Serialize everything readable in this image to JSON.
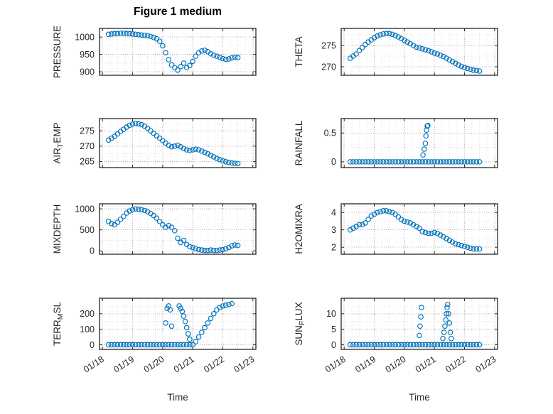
{
  "figure": {
    "title": "Figure 1 medium",
    "xlabel": "Time",
    "marker_color": "#0072BD",
    "axis_color": "#262626",
    "grid_color": "#b0b0b0",
    "minor_grid_color": "#e4e4e4",
    "background": "#ffffff"
  },
  "x_axis": {
    "ticks": [
      18,
      19,
      20,
      21,
      22,
      23
    ],
    "tick_labels": [
      "01/18",
      "01/19",
      "01/20",
      "01/21",
      "01/22",
      "01/23"
    ],
    "xlim": [
      17.9,
      23.1
    ]
  },
  "chart_data": [
    {
      "name": "pressure",
      "type": "scatter",
      "ylabel": "PRESSURE",
      "ylabel_parts": [
        {
          "text": "PRESSURE",
          "sub": false
        }
      ],
      "yticks": [
        900,
        950,
        1000
      ],
      "ylim": [
        890,
        1025
      ],
      "x": [
        18.2,
        18.3,
        18.4,
        18.5,
        18.6,
        18.7,
        18.8,
        18.9,
        19,
        19.1,
        19.2,
        19.3,
        19.4,
        19.5,
        19.6,
        19.7,
        19.8,
        19.9,
        20,
        20.1,
        20.2,
        20.3,
        20.4,
        20.5,
        20.6,
        20.7,
        20.8,
        20.9,
        21,
        21.1,
        21.2,
        21.3,
        21.4,
        21.5,
        21.6,
        21.7,
        21.8,
        21.9,
        22,
        22.1,
        22.2,
        22.3,
        22.4,
        22.5
      ],
      "y": [
        1008,
        1009,
        1010,
        1010,
        1011,
        1011,
        1010,
        1010,
        1009,
        1008,
        1007,
        1006,
        1005,
        1004,
        1002,
        999,
        995,
        988,
        975,
        955,
        935,
        920,
        912,
        905,
        915,
        925,
        912,
        918,
        930,
        945,
        955,
        960,
        962,
        958,
        952,
        948,
        945,
        942,
        938,
        936,
        937,
        940,
        942,
        941
      ]
    },
    {
      "name": "theta",
      "type": "scatter",
      "ylabel": "THETA",
      "ylabel_parts": [
        {
          "text": "THETA",
          "sub": false
        }
      ],
      "yticks": [
        270,
        275
      ],
      "ylim": [
        268,
        279
      ],
      "x": [
        18.2,
        18.3,
        18.4,
        18.5,
        18.6,
        18.7,
        18.8,
        18.9,
        19,
        19.1,
        19.2,
        19.3,
        19.4,
        19.5,
        19.6,
        19.7,
        19.8,
        19.9,
        20,
        20.1,
        20.2,
        20.3,
        20.4,
        20.5,
        20.6,
        20.7,
        20.8,
        20.9,
        21,
        21.1,
        21.2,
        21.3,
        21.4,
        21.5,
        21.6,
        21.7,
        21.8,
        21.9,
        22,
        22.1,
        22.2,
        22.3,
        22.4,
        22.5
      ],
      "y": [
        272,
        272.5,
        273,
        273.8,
        274.5,
        275.2,
        275.8,
        276.3,
        276.8,
        277.2,
        277.5,
        277.7,
        277.8,
        277.8,
        277.6,
        277.3,
        277,
        276.6,
        276.2,
        275.8,
        275.4,
        275,
        274.6,
        274.4,
        274.2,
        274,
        273.8,
        273.5,
        273.2,
        273,
        272.7,
        272.4,
        272,
        271.6,
        271.2,
        270.8,
        270.4,
        270.1,
        269.8,
        269.6,
        269.4,
        269.2,
        269.1,
        269
      ]
    },
    {
      "name": "air-temp",
      "type": "scatter",
      "ylabel": "AIR_TEMP",
      "ylabel_parts": [
        {
          "text": "AIR",
          "sub": false
        },
        {
          "text": "T",
          "sub": true
        },
        {
          "text": "EMP",
          "sub": false
        }
      ],
      "yticks": [
        265,
        270,
        275
      ],
      "ylim": [
        263,
        279
      ],
      "x": [
        18.2,
        18.3,
        18.4,
        18.5,
        18.6,
        18.7,
        18.8,
        18.9,
        19,
        19.1,
        19.2,
        19.3,
        19.4,
        19.5,
        19.6,
        19.7,
        19.8,
        19.9,
        20,
        20.1,
        20.2,
        20.3,
        20.4,
        20.5,
        20.6,
        20.7,
        20.8,
        20.9,
        21,
        21.1,
        21.2,
        21.3,
        21.4,
        21.5,
        21.6,
        21.7,
        21.8,
        21.9,
        22,
        22.1,
        22.2,
        22.3,
        22.4,
        22.5
      ],
      "y": [
        272,
        272.6,
        273.2,
        274,
        274.8,
        275.5,
        276.2,
        276.8,
        277.2,
        277.4,
        277.3,
        277,
        276.5,
        275.8,
        275,
        274.2,
        273.4,
        272.6,
        271.8,
        271,
        270.3,
        269.8,
        270,
        270.3,
        269.8,
        269.2,
        268.8,
        268.6,
        268.8,
        269,
        268.8,
        268.4,
        268,
        267.5,
        267,
        266.5,
        266,
        265.6,
        265.2,
        264.9,
        264.7,
        264.5,
        264.4,
        264.3
      ]
    },
    {
      "name": "rainfall",
      "type": "scatter",
      "ylabel": "RAINFALL",
      "ylabel_parts": [
        {
          "text": "RAINFALL",
          "sub": false
        }
      ],
      "yticks": [
        0,
        0.5
      ],
      "ylim": [
        -0.1,
        0.75
      ],
      "x": [
        18.2,
        18.3,
        18.4,
        18.5,
        18.6,
        18.7,
        18.8,
        18.9,
        19,
        19.1,
        19.2,
        19.3,
        19.4,
        19.5,
        19.6,
        19.7,
        19.8,
        19.9,
        20,
        20.1,
        20.2,
        20.3,
        20.4,
        20.5,
        20.6,
        20.7,
        20.8,
        20.9,
        21,
        21.1,
        21.2,
        21.3,
        21.4,
        21.5,
        21.6,
        21.7,
        21.8,
        21.9,
        22,
        22.1,
        22.2,
        22.3,
        22.4,
        22.5,
        20.62,
        20.66,
        20.7,
        20.72,
        20.74,
        20.76,
        20.78
      ],
      "y": [
        0,
        0,
        0,
        0,
        0,
        0,
        0,
        0,
        0,
        0,
        0,
        0,
        0,
        0,
        0,
        0,
        0,
        0,
        0,
        0,
        0,
        0,
        0,
        0,
        0,
        0,
        0,
        0,
        0,
        0,
        0,
        0,
        0,
        0,
        0,
        0,
        0,
        0,
        0,
        0,
        0,
        0,
        0,
        0,
        0.12,
        0.22,
        0.32,
        0.45,
        0.55,
        0.62,
        0.63
      ]
    },
    {
      "name": "mixdepth",
      "type": "scatter",
      "ylabel": "MIXDEPTH",
      "ylabel_parts": [
        {
          "text": "MIXDEPTH",
          "sub": false
        }
      ],
      "yticks": [
        0,
        500,
        1000
      ],
      "ylim": [
        -80,
        1120
      ],
      "x": [
        18.2,
        18.3,
        18.4,
        18.5,
        18.6,
        18.7,
        18.8,
        18.9,
        19,
        19.1,
        19.2,
        19.3,
        19.4,
        19.5,
        19.6,
        19.7,
        19.8,
        19.9,
        20,
        20.1,
        20.2,
        20.3,
        20.4,
        20.5,
        20.6,
        20.7,
        20.8,
        20.9,
        21,
        21.1,
        21.2,
        21.3,
        21.4,
        21.5,
        21.6,
        21.7,
        21.8,
        21.9,
        22,
        22.1,
        22.2,
        22.3,
        22.4,
        22.5
      ],
      "y": [
        700,
        650,
        620,
        680,
        750,
        820,
        900,
        950,
        980,
        1000,
        990,
        980,
        960,
        930,
        890,
        840,
        780,
        700,
        620,
        560,
        600,
        560,
        480,
        300,
        200,
        250,
        150,
        100,
        80,
        50,
        30,
        20,
        10,
        10,
        20,
        10,
        10,
        20,
        30,
        50,
        80,
        120,
        140,
        130
      ]
    },
    {
      "name": "h2omixra",
      "type": "scatter",
      "ylabel": "H2OMIXRA",
      "ylabel_parts": [
        {
          "text": "H2OMIXRA",
          "sub": false
        }
      ],
      "yticks": [
        2,
        3,
        4
      ],
      "ylim": [
        1.6,
        4.5
      ],
      "x": [
        18.2,
        18.3,
        18.4,
        18.5,
        18.6,
        18.7,
        18.8,
        18.9,
        19,
        19.1,
        19.2,
        19.3,
        19.4,
        19.5,
        19.6,
        19.7,
        19.8,
        19.9,
        20,
        20.1,
        20.2,
        20.3,
        20.4,
        20.5,
        20.6,
        20.7,
        20.8,
        20.9,
        21,
        21.1,
        21.2,
        21.3,
        21.4,
        21.5,
        21.6,
        21.7,
        21.8,
        21.9,
        22,
        22.1,
        22.2,
        22.3,
        22.4,
        22.5
      ],
      "y": [
        3,
        3.1,
        3.2,
        3.3,
        3.3,
        3.4,
        3.6,
        3.8,
        3.9,
        4,
        4.05,
        4.1,
        4.1,
        4.05,
        4,
        3.9,
        3.75,
        3.6,
        3.5,
        3.45,
        3.4,
        3.3,
        3.2,
        3.1,
        2.9,
        2.85,
        2.8,
        2.8,
        2.85,
        2.8,
        2.7,
        2.6,
        2.5,
        2.4,
        2.3,
        2.2,
        2.15,
        2.1,
        2.05,
        2,
        1.95,
        1.9,
        1.9,
        1.9
      ]
    },
    {
      "name": "terr-msl",
      "type": "scatter",
      "ylabel": "TERR_MSL",
      "ylabel_parts": [
        {
          "text": "TERR",
          "sub": false
        },
        {
          "text": "M",
          "sub": true
        },
        {
          "text": "SL",
          "sub": false
        }
      ],
      "yticks": [
        0,
        100,
        200
      ],
      "ylim": [
        -30,
        300
      ],
      "x": [
        18.2,
        18.3,
        18.4,
        18.5,
        18.6,
        18.7,
        18.8,
        18.9,
        19,
        19.1,
        19.2,
        19.3,
        19.4,
        19.5,
        19.6,
        19.7,
        19.8,
        19.9,
        20,
        20.1,
        20.2,
        20.3,
        20.4,
        20.5,
        20.6,
        20.7,
        20.8,
        20.9,
        21,
        20.1,
        20.15,
        20.2,
        20.25,
        20.3,
        20.55,
        20.6,
        20.65,
        20.7,
        20.75,
        20.8,
        20.85,
        20.9,
        21.1,
        21.2,
        21.3,
        21.4,
        21.5,
        21.6,
        21.7,
        21.8,
        21.9,
        22,
        22.1,
        22.2,
        22.3
      ],
      "y": [
        0,
        0,
        0,
        0,
        0,
        0,
        0,
        0,
        0,
        0,
        0,
        0,
        0,
        0,
        0,
        0,
        0,
        0,
        0,
        0,
        0,
        0,
        0,
        0,
        0,
        0,
        0,
        0,
        0,
        140,
        235,
        250,
        225,
        120,
        250,
        235,
        215,
        185,
        150,
        110,
        70,
        35,
        20,
        50,
        80,
        110,
        140,
        170,
        200,
        225,
        240,
        250,
        255,
        260,
        265
      ]
    },
    {
      "name": "sun-flux",
      "type": "scatter",
      "ylabel": "SUN_FLUX",
      "ylabel_parts": [
        {
          "text": "SUN",
          "sub": false
        },
        {
          "text": "F",
          "sub": true
        },
        {
          "text": "LUX",
          "sub": false
        }
      ],
      "yticks": [
        0,
        5,
        10
      ],
      "ylim": [
        -1.5,
        15
      ],
      "x": [
        18.2,
        18.3,
        18.4,
        18.5,
        18.6,
        18.7,
        18.8,
        18.9,
        19,
        19.1,
        19.2,
        19.3,
        19.4,
        19.5,
        19.6,
        19.7,
        19.8,
        19.9,
        20,
        20.1,
        20.2,
        20.3,
        20.4,
        20.5,
        20.6,
        20.7,
        20.8,
        20.9,
        21,
        21.1,
        21.2,
        21.3,
        21.4,
        21.5,
        21.6,
        21.7,
        21.8,
        21.9,
        22,
        22.1,
        22.2,
        22.3,
        22.4,
        22.5,
        20.5,
        20.52,
        20.55,
        20.57,
        21.28,
        21.32,
        21.35,
        21.38,
        21.4,
        21.42,
        21.44,
        21.47,
        21.5,
        21.53,
        21.56
      ],
      "y": [
        0,
        0,
        0,
        0,
        0,
        0,
        0,
        0,
        0,
        0,
        0,
        0,
        0,
        0,
        0,
        0,
        0,
        0,
        0,
        0,
        0,
        0,
        0,
        0,
        0,
        0,
        0,
        0,
        0,
        0,
        0,
        0,
        0,
        0,
        0,
        0,
        0,
        0,
        0,
        0,
        0,
        0,
        0,
        0,
        3,
        6,
        9,
        12,
        2,
        4,
        6,
        8,
        10,
        12,
        13,
        10,
        7,
        4,
        2
      ]
    }
  ]
}
